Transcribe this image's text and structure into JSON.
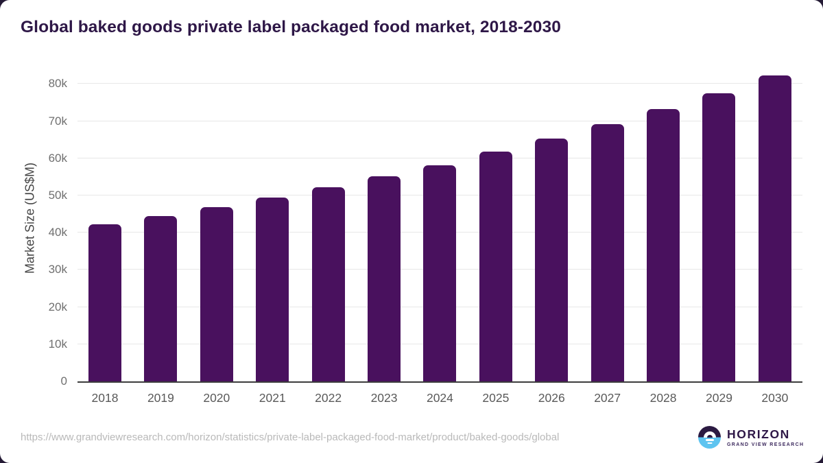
{
  "title": "Global baked goods private label packaged food market, 2018-2030",
  "chart_data": {
    "type": "bar",
    "title": "Global baked goods private label packaged food market, 2018-2030",
    "categories": [
      "2018",
      "2019",
      "2020",
      "2021",
      "2022",
      "2023",
      "2024",
      "2025",
      "2026",
      "2027",
      "2028",
      "2029",
      "2030"
    ],
    "values": [
      42200,
      44500,
      46900,
      49500,
      52300,
      55200,
      58200,
      61800,
      65400,
      69200,
      73300,
      77500,
      82300
    ],
    "xlabel": "",
    "ylabel": "Market Size (US$M)",
    "ylim": [
      0,
      84500
    ],
    "yticks": [
      {
        "value": 0,
        "label": "0"
      },
      {
        "value": 10000,
        "label": "10k"
      },
      {
        "value": 20000,
        "label": "20k"
      },
      {
        "value": 30000,
        "label": "30k"
      },
      {
        "value": 40000,
        "label": "40k"
      },
      {
        "value": 50000,
        "label": "50k"
      },
      {
        "value": 60000,
        "label": "60k"
      },
      {
        "value": 70000,
        "label": "70k"
      },
      {
        "value": 80000,
        "label": "80k"
      }
    ],
    "grid": true,
    "legend": false,
    "bar_color": "#49115e"
  },
  "footer": {
    "source_url": "https://www.grandviewresearch.com/horizon/statistics/private-label-packaged-food-market/product/baked-goods/global",
    "logo": {
      "name": "HORIZON",
      "subtitle": "GRAND VIEW RESEARCH",
      "icon": "horizon-sun-over-water-icon",
      "purple": "#2b1a42",
      "blue": "#5ec4f0"
    }
  },
  "colors": {
    "title_text": "#2e1747",
    "bar": "#49115e",
    "gridline": "#e7e7e7",
    "axis_line": "#3c3c3c",
    "tick_text": "#6f6f6f",
    "url_text": "#b9b9b9",
    "card_background": "#ffffff",
    "page_background": "#241a35"
  }
}
